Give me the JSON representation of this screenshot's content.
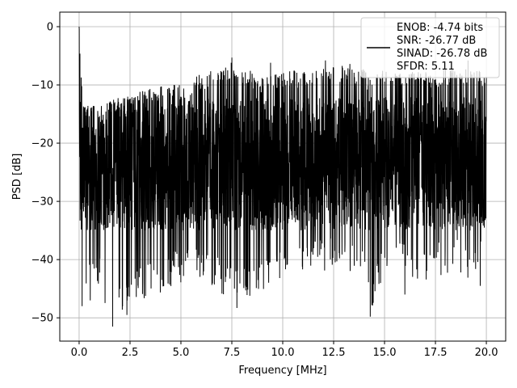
{
  "chart_data": {
    "type": "line",
    "xlabel": "Frequency [MHz]",
    "ylabel": "PSD [dB]",
    "xlim": [
      -0.95,
      20.95
    ],
    "ylim": [
      -54,
      2.5
    ],
    "xticks": [
      0.0,
      2.5,
      5.0,
      7.5,
      10.0,
      12.5,
      15.0,
      17.5,
      20.0
    ],
    "xtick_labels": [
      "0.0",
      "2.5",
      "5.0",
      "7.5",
      "10.0",
      "12.5",
      "15.0",
      "17.5",
      "20.0"
    ],
    "yticks": [
      0,
      -10,
      -20,
      -30,
      -40,
      -50
    ],
    "ytick_labels": [
      "0",
      "−10",
      "−20",
      "−30",
      "−40",
      "−50"
    ],
    "grid": true,
    "legend": {
      "placement": "top-right",
      "entries": [
        "ENOB: -4.74 bits",
        "SNR: -26.77 dB",
        "SINAD: -26.78 dB",
        "SFDR: 5.11"
      ]
    },
    "series": [
      {
        "color": "#000000",
        "envelope": {
          "x": [
            0.0,
            0.05,
            0.2,
            0.5,
            1.0,
            1.7,
            2.5,
            3.5,
            5.0,
            6.0,
            7.5,
            9.0,
            10.0,
            11.5,
            12.5,
            14.0,
            14.3,
            15.0,
            16.0,
            16.5,
            17.5,
            18.5,
            19.5,
            20.0
          ],
          "upper": [
            0.0,
            -3.0,
            -12.5,
            -13.5,
            -13.8,
            -12.5,
            -11.5,
            -10.5,
            -9.5,
            -8.0,
            -6.0,
            -8.5,
            -7.5,
            -7.5,
            -6.5,
            -7.0,
            -8.5,
            -6.8,
            -7.2,
            -7.8,
            -7.5,
            -7.0,
            -7.0,
            -8.5
          ],
          "lower": [
            -5.0,
            -42.0,
            -47.0,
            -44.5,
            -45.0,
            -51.5,
            -48.0,
            -46.5,
            -44.0,
            -43.0,
            -47.5,
            -46.0,
            -43.0,
            -42.5,
            -42.0,
            -43.5,
            -49.5,
            -43.0,
            -42.0,
            -45.0,
            -43.0,
            -42.0,
            -44.5,
            -33.0
          ]
        },
        "central_band": [
          -35,
          -12
        ],
        "spikes": [
          {
            "x": 1.65,
            "y": -51.5
          },
          {
            "x": 2.35,
            "y": -49.5
          },
          {
            "x": 0.15,
            "y": -48.0
          },
          {
            "x": 0.55,
            "y": -47.0
          },
          {
            "x": 7.75,
            "y": -48.3
          },
          {
            "x": 14.3,
            "y": -49.8
          },
          {
            "x": 19.7,
            "y": -44.5
          },
          {
            "x": 16.0,
            "y": -46.0
          },
          {
            "x": 7.5,
            "y": -5.3
          },
          {
            "x": 12.1,
            "y": -5.8
          },
          {
            "x": 19.1,
            "y": -5.8
          },
          {
            "x": 9.4,
            "y": -6.2
          },
          {
            "x": 13.3,
            "y": -6.4
          }
        ]
      }
    ]
  }
}
